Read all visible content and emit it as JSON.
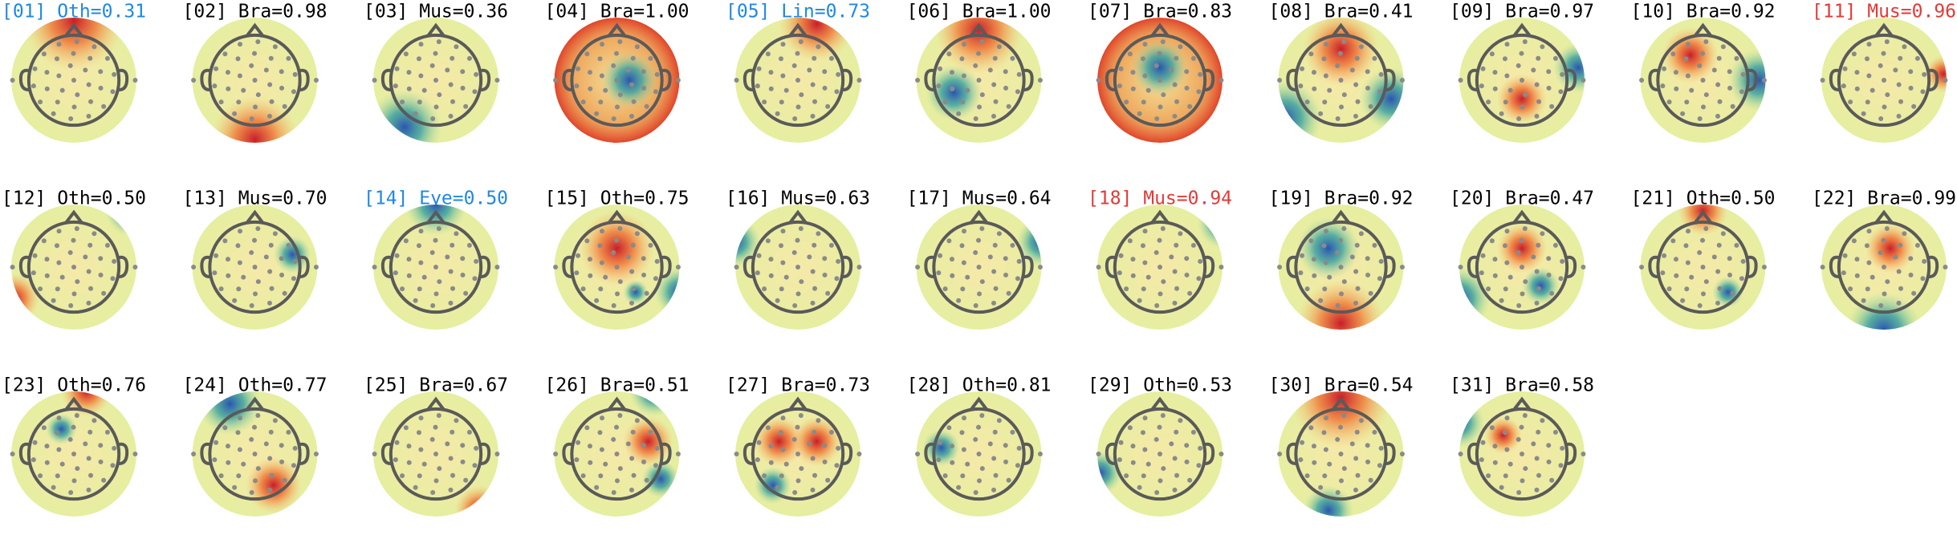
{
  "components": [
    {
      "label": "[01] Oth=0.31",
      "color": "#1e88e5"
    },
    {
      "label": "[02] Bra=0.98",
      "color": "#000000"
    },
    {
      "label": "[03] Mus=0.36",
      "color": "#000000"
    },
    {
      "label": "[04] Bra=1.00",
      "color": "#000000"
    },
    {
      "label": "[05] Lin=0.73",
      "color": "#1e88e5"
    },
    {
      "label": "[06] Bra=1.00",
      "color": "#000000"
    },
    {
      "label": "[07] Bra=0.83",
      "color": "#000000"
    },
    {
      "label": "[08] Bra=0.41",
      "color": "#000000"
    },
    {
      "label": "[09] Bra=0.97",
      "color": "#000000"
    },
    {
      "label": "[10] Bra=0.92",
      "color": "#000000"
    },
    {
      "label": "[11] Mus=0.96",
      "color": "#e53935"
    },
    {
      "label": "[12] Oth=0.50",
      "color": "#000000"
    },
    {
      "label": "[13] Mus=0.70",
      "color": "#000000"
    },
    {
      "label": "[14] Eye=0.50",
      "color": "#1e88e5"
    },
    {
      "label": "[15] Oth=0.75",
      "color": "#000000"
    },
    {
      "label": "[16] Mus=0.63",
      "color": "#000000"
    },
    {
      "label": "[17] Mus=0.64",
      "color": "#000000"
    },
    {
      "label": "[18] Mus=0.94",
      "color": "#e53935"
    },
    {
      "label": "[19] Bra=0.92",
      "color": "#000000"
    },
    {
      "label": "[20] Bra=0.47",
      "color": "#000000"
    },
    {
      "label": "[21] Oth=0.50",
      "color": "#000000"
    },
    {
      "label": "[22] Bra=0.99",
      "color": "#000000"
    },
    {
      "label": "[23] Oth=0.76",
      "color": "#000000"
    },
    {
      "label": "[24] Oth=0.77",
      "color": "#000000"
    },
    {
      "label": "[25] Bra=0.67",
      "color": "#000000"
    },
    {
      "label": "[26] Bra=0.51",
      "color": "#000000"
    },
    {
      "label": "[27] Bra=0.73",
      "color": "#000000"
    },
    {
      "label": "[28] Oth=0.81",
      "color": "#000000"
    },
    {
      "label": "[29] Oth=0.53",
      "color": "#000000"
    },
    {
      "label": "[30] Bra=0.54",
      "color": "#000000"
    },
    {
      "label": "[31] Bra=0.58",
      "color": "#000000"
    }
  ]
}
